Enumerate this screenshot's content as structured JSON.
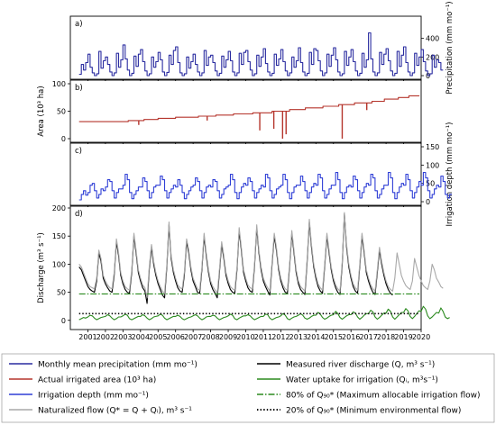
{
  "chart_data": [
    {
      "panel": "a)",
      "type": "line",
      "ylabel": "Precipitation (mm mo⁻¹)",
      "yaxis_side": "right",
      "ylim": [
        0,
        600
      ],
      "yticks": [
        0,
        200,
        400
      ],
      "xlim": [
        2000,
        2020
      ],
      "series": [
        {
          "color": "#2a2ca0",
          "start_year": 2000.5,
          "values": [
            15,
            120,
            60,
            140,
            230,
            90,
            30,
            0,
            20,
            260,
            80,
            160,
            200,
            120,
            40,
            0,
            30,
            240,
            90,
            170,
            330,
            180,
            60,
            0,
            25,
            210,
            100,
            230,
            280,
            150,
            50,
            0,
            20,
            200,
            90,
            150,
            250,
            170,
            40,
            0,
            35,
            220,
            120,
            270,
            310,
            140,
            30,
            0,
            20,
            200,
            80,
            150,
            230,
            120,
            40,
            0,
            30,
            270,
            110,
            200,
            220,
            140,
            50,
            0,
            25,
            210,
            90,
            170,
            260,
            160,
            40,
            0,
            30,
            240,
            120,
            250,
            270,
            150,
            60,
            0,
            20,
            220,
            100,
            200,
            290,
            130,
            40,
            0,
            25,
            230,
            110,
            180,
            280,
            150,
            50,
            0,
            30,
            200,
            90,
            160,
            300,
            140,
            40,
            0,
            25,
            250,
            120,
            290,
            270,
            160,
            50,
            0,
            30,
            230,
            100,
            220,
            300,
            170,
            40,
            0,
            20,
            260,
            110,
            200,
            280,
            150,
            50,
            0,
            25,
            240,
            90,
            170,
            460,
            180,
            40,
            0,
            30,
            250,
            120,
            230,
            290,
            160,
            50,
            0,
            25,
            260,
            100,
            220,
            310,
            140,
            40,
            0,
            30,
            240,
            110,
            200,
            280,
            150,
            50,
            0,
            20,
            220,
            90,
            170,
            140,
            60
          ]
        }
      ]
    },
    {
      "panel": "b)",
      "type": "line",
      "ylabel": "Area (10³ ha)",
      "yaxis_side": "left",
      "ylim": [
        0,
        100
      ],
      "yticks": [
        0,
        50,
        100
      ],
      "xlim": [
        2000,
        2020
      ],
      "series": [
        {
          "color": "#b5352c",
          "steps": [
            [
              2000.5,
              31
            ],
            [
              2003.3,
              33
            ],
            [
              2004.2,
              35
            ],
            [
              2005.0,
              37
            ],
            [
              2006.0,
              39
            ],
            [
              2007.3,
              41
            ],
            [
              2008.3,
              43
            ],
            [
              2009.3,
              45
            ],
            [
              2010.4,
              47
            ],
            [
              2011.5,
              50
            ],
            [
              2012.5,
              53
            ],
            [
              2013.4,
              56
            ],
            [
              2014.4,
              59
            ],
            [
              2015.3,
              62
            ],
            [
              2016.2,
              65
            ],
            [
              2017.2,
              68
            ],
            [
              2017.9,
              72
            ],
            [
              2018.7,
              75
            ],
            [
              2019.3,
              78
            ],
            [
              2019.9,
              78
            ]
          ],
          "dips": [
            [
              2003.9,
              25
            ],
            [
              2007.8,
              33
            ],
            [
              2010.8,
              15
            ],
            [
              2011.6,
              18
            ],
            [
              2012.1,
              0
            ],
            [
              2012.3,
              8
            ],
            [
              2015.5,
              0
            ],
            [
              2016.9,
              52
            ]
          ]
        }
      ]
    },
    {
      "panel": "c)",
      "type": "line",
      "ylabel": "Irrigation depth (mm mo⁻¹)",
      "yaxis_side": "right",
      "ylim": [
        0,
        150
      ],
      "yticks": [
        0,
        50,
        100,
        150
      ],
      "xlim": [
        2000,
        2020
      ],
      "series": [
        {
          "color": "#2f3fd6",
          "start_year": 2000.5,
          "values": [
            5,
            20,
            30,
            18,
            25,
            45,
            50,
            30,
            10,
            20,
            35,
            30,
            40,
            60,
            55,
            30,
            10,
            25,
            35,
            35,
            45,
            75,
            60,
            25,
            8,
            20,
            30,
            40,
            40,
            65,
            55,
            30,
            10,
            25,
            40,
            45,
            45,
            70,
            60,
            30,
            10,
            25,
            35,
            45,
            40,
            60,
            45,
            25,
            8,
            20,
            30,
            40,
            45,
            65,
            55,
            30,
            10,
            25,
            40,
            45,
            40,
            60,
            55,
            30,
            10,
            20,
            35,
            40,
            45,
            75,
            60,
            25,
            8,
            25,
            40,
            50,
            45,
            65,
            55,
            30,
            10,
            25,
            35,
            45,
            40,
            75,
            65,
            30,
            10,
            20,
            35,
            40,
            45,
            75,
            60,
            25,
            8,
            25,
            40,
            45,
            45,
            70,
            55,
            30,
            10,
            25,
            40,
            50,
            45,
            75,
            65,
            30,
            10,
            20,
            35,
            45,
            45,
            80,
            60,
            25,
            8,
            25,
            40,
            45,
            40,
            70,
            60,
            30,
            10,
            25,
            40,
            50,
            45,
            75,
            65,
            30,
            10,
            20,
            35,
            45,
            45,
            80,
            65,
            25,
            8,
            25,
            40,
            50,
            45,
            75,
            60,
            30,
            10,
            25,
            40,
            55,
            45,
            80,
            65,
            30,
            10,
            20,
            35,
            45,
            40,
            70,
            55,
            20,
            10,
            20
          ]
        }
      ]
    },
    {
      "panel": "d)",
      "type": "line",
      "ylabel": "Discharge (m³ s⁻¹)",
      "yaxis_side": "left",
      "ylim": [
        -10,
        200
      ],
      "yticks": [
        0,
        50,
        100,
        150,
        200
      ],
      "xlim": [
        2000,
        2020
      ],
      "xticks": [
        2001,
        2002,
        2003,
        2004,
        2005,
        2006,
        2007,
        2008,
        2009,
        2010,
        2011,
        2012,
        2013,
        2014,
        2015,
        2016,
        2017,
        2018,
        2019,
        2020
      ],
      "series": [
        {
          "name": "Measured river discharge (Q, m³ s⁻¹)",
          "color": "#000000",
          "style": "solid",
          "start_year": 2000.5,
          "values": [
            95,
            90,
            80,
            70,
            60,
            55,
            52,
            50,
            70,
            120,
            105,
            75,
            65,
            58,
            52,
            50,
            80,
            140,
            115,
            80,
            65,
            55,
            50,
            48,
            85,
            150,
            120,
            85,
            70,
            58,
            52,
            30,
            90,
            130,
            100,
            80,
            65,
            55,
            45,
            40,
            95,
            170,
            110,
            85,
            70,
            58,
            52,
            50,
            80,
            140,
            120,
            90,
            70,
            60,
            50,
            48,
            90,
            150,
            115,
            85,
            65,
            55,
            48,
            40,
            85,
            135,
            110,
            80,
            65,
            55,
            50,
            48,
            90,
            160,
            125,
            85,
            70,
            58,
            52,
            50,
            95,
            165,
            120,
            90,
            70,
            60,
            52,
            45,
            100,
            150,
            125,
            90,
            70,
            58,
            50,
            48,
            95,
            155,
            120,
            85,
            65,
            55,
            50,
            46,
            105,
            175,
            130,
            95,
            75,
            60,
            52,
            48,
            95,
            150,
            120,
            90,
            70,
            58,
            50,
            46,
            100,
            190,
            130,
            95,
            75,
            60,
            52,
            48,
            95,
            150,
            120,
            85,
            70,
            58,
            50,
            46,
            85,
            125,
            100,
            80,
            65,
            55,
            48,
            45
          ]
        },
        {
          "name": "Naturalized flow (Q* = Q + Qᵢ), m³ s⁻¹",
          "color": "#a8a8a8",
          "style": "solid",
          "start_year": 2000.5,
          "values": [
            100,
            95,
            85,
            75,
            65,
            60,
            58,
            56,
            75,
            125,
            110,
            80,
            70,
            63,
            58,
            56,
            85,
            145,
            120,
            85,
            70,
            60,
            56,
            54,
            90,
            155,
            125,
            90,
            75,
            63,
            58,
            40,
            95,
            135,
            105,
            85,
            70,
            60,
            52,
            48,
            100,
            175,
            115,
            90,
            75,
            63,
            58,
            56,
            85,
            145,
            125,
            95,
            75,
            65,
            56,
            54,
            95,
            155,
            120,
            90,
            70,
            60,
            54,
            48,
            90,
            140,
            115,
            85,
            70,
            60,
            56,
            54,
            95,
            165,
            130,
            90,
            75,
            63,
            58,
            56,
            100,
            170,
            125,
            95,
            75,
            65,
            58,
            52,
            105,
            155,
            130,
            95,
            75,
            63,
            56,
            54,
            100,
            160,
            125,
            90,
            70,
            60,
            56,
            52,
            110,
            180,
            135,
            100,
            80,
            65,
            58,
            54,
            100,
            155,
            125,
            95,
            75,
            63,
            56,
            52,
            105,
            192,
            135,
            100,
            80,
            65,
            58,
            54,
            100,
            155,
            125,
            90,
            75,
            63,
            56,
            52,
            90,
            130,
            105,
            85,
            70,
            60,
            55,
            52,
            75,
            120,
            100,
            80,
            70,
            62,
            58,
            55,
            70,
            110,
            95,
            80,
            70,
            62,
            58,
            55,
            70,
            100,
            90,
            75,
            68,
            60,
            57
          ]
        },
        {
          "name": "Water uptake for irrigation (Qᵢ, m³s⁻¹)",
          "color": "#2b8a1f",
          "style": "solid",
          "start_year": 2000.5,
          "values": [
            1,
            3,
            5,
            4,
            6,
            9,
            8,
            4,
            1,
            3,
            5,
            6,
            7,
            10,
            8,
            4,
            1,
            3,
            6,
            6,
            8,
            11,
            9,
            3,
            1,
            3,
            5,
            7,
            7,
            10,
            8,
            4,
            1,
            3,
            6,
            7,
            8,
            11,
            9,
            4,
            1,
            3,
            5,
            7,
            7,
            9,
            7,
            3,
            1,
            3,
            5,
            6,
            8,
            10,
            8,
            4,
            1,
            3,
            6,
            7,
            7,
            9,
            8,
            4,
            1,
            3,
            5,
            6,
            8,
            11,
            9,
            3,
            1,
            4,
            6,
            8,
            8,
            10,
            8,
            4,
            1,
            3,
            5,
            7,
            7,
            11,
            10,
            4,
            1,
            3,
            5,
            6,
            8,
            12,
            9,
            3,
            1,
            4,
            6,
            7,
            9,
            12,
            9,
            4,
            2,
            4,
            7,
            9,
            9,
            14,
            11,
            5,
            2,
            4,
            7,
            9,
            10,
            16,
            12,
            5,
            2,
            5,
            8,
            10,
            10,
            15,
            13,
            6,
            2,
            5,
            9,
            12,
            12,
            18,
            15,
            6,
            2,
            5,
            9,
            13,
            13,
            20,
            16,
            6,
            2,
            6,
            10,
            14,
            14,
            21,
            17,
            7,
            3,
            7,
            12,
            17,
            16,
            25,
            20,
            8,
            3,
            6,
            10,
            14,
            13,
            22,
            16,
            6,
            3,
            5
          ]
        },
        {
          "name": "80% of Q₉₀* (Maximum allocable irrigation flow)",
          "color": "#2b8a1f",
          "style": "dashdot",
          "constant": 47,
          "range": [
            2000.5,
            2019.9
          ]
        },
        {
          "name": "20% of Q₉₀* (Minimum environmental flow)",
          "color": "#000000",
          "style": "dotted",
          "constant": 12,
          "range": [
            2000.5,
            2019.9
          ]
        }
      ]
    }
  ],
  "legend": {
    "placement": "bottom",
    "items": [
      {
        "label": "Monthly mean precipitation (mm mo⁻¹)",
        "color": "#2a2ca0",
        "style": "solid"
      },
      {
        "label": "Actual irrigated area (10³ ha)",
        "color": "#b5352c",
        "style": "solid"
      },
      {
        "label": "Irrigation depth (mm mo⁻¹)",
        "color": "#2f3fd6",
        "style": "solid"
      },
      {
        "label": "Naturalized flow (Q* = Q + Qᵢ), m³ s⁻¹",
        "color": "#a8a8a8",
        "style": "solid"
      },
      {
        "label": "Measured river discharge (Q, m³ s⁻¹)",
        "color": "#000000",
        "style": "solid"
      },
      {
        "label": "Water uptake for irrigation (Qᵢ, m³s⁻¹)",
        "color": "#2b8a1f",
        "style": "solid"
      },
      {
        "label": "80% of  Q₉₀* (Maximum allocable irrigation flow)",
        "color": "#2b8a1f",
        "style": "dashdot"
      },
      {
        "label": "20% of  Q₉₀* (Minimum environmental flow)",
        "color": "#000000",
        "style": "dotted"
      }
    ]
  }
}
